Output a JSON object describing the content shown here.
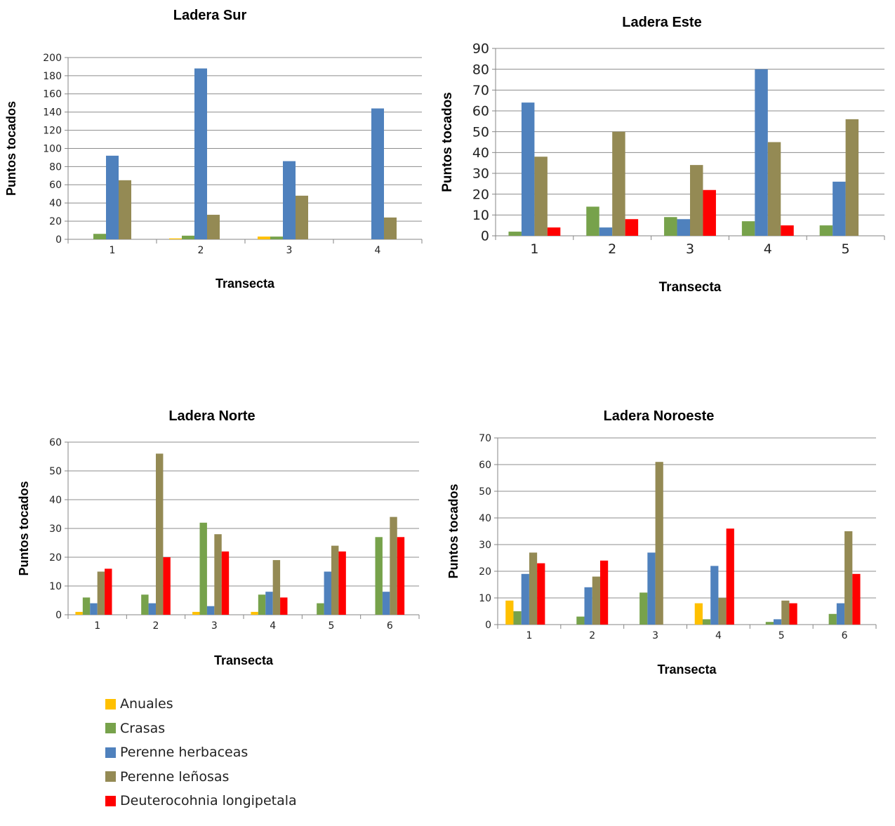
{
  "colors": {
    "Anuales": "#ffc000",
    "Crasas": "#77a24b",
    "Perenne herbaceas": "#4f81bd",
    "Perenne leñosas": "#948a54",
    "Deuterocohnia longipetala": "#ff0000"
  },
  "legend": {
    "items": [
      {
        "label": "Anuales",
        "color": "#ffc000"
      },
      {
        "label": "Crasas",
        "color": "#77a24b"
      },
      {
        "label": "Perenne herbaceas",
        "color": "#4f81bd"
      },
      {
        "label": "Perenne leñosas",
        "color": "#948a54"
      },
      {
        "label": "Deuterocohnia longipetala",
        "color": "#ff0000"
      }
    ]
  },
  "chart_data": [
    {
      "type": "bar",
      "title": "Ladera Sur",
      "xlabel": "Transecta",
      "ylabel": "Puntos tocados",
      "ylim": [
        0,
        200
      ],
      "ystep": 20,
      "categories": [
        "1",
        "2",
        "3",
        "4"
      ],
      "series": [
        {
          "name": "Anuales",
          "values": [
            0,
            1,
            3,
            0
          ]
        },
        {
          "name": "Crasas",
          "values": [
            6,
            4,
            3,
            0
          ]
        },
        {
          "name": "Perenne herbaceas",
          "values": [
            92,
            188,
            86,
            144
          ]
        },
        {
          "name": "Perenne leñosas",
          "values": [
            65,
            27,
            48,
            24
          ]
        }
      ],
      "grid": true,
      "legend": "none"
    },
    {
      "type": "bar",
      "title": "Ladera Este",
      "xlabel": "Transecta",
      "ylabel": "Puntos tocados",
      "ylim": [
        0,
        90
      ],
      "ystep": 10,
      "categories": [
        "1",
        "2",
        "3",
        "4",
        "5"
      ],
      "series": [
        {
          "name": "Crasas",
          "values": [
            2,
            14,
            9,
            7,
            5
          ]
        },
        {
          "name": "Perenne herbaceas",
          "values": [
            64,
            4,
            8,
            80,
            26
          ]
        },
        {
          "name": "Perenne leñosas",
          "values": [
            38,
            50,
            34,
            45,
            56
          ]
        },
        {
          "name": "Deuterocohnia longipetala",
          "values": [
            4,
            8,
            22,
            5,
            0
          ]
        }
      ],
      "grid": true,
      "legend": "none"
    },
    {
      "type": "bar",
      "title": "Ladera Norte",
      "xlabel": "Transecta",
      "ylabel": "Puntos tocados",
      "ylim": [
        0,
        60
      ],
      "ystep": 10,
      "categories": [
        "1",
        "2",
        "3",
        "4",
        "5",
        "6"
      ],
      "series": [
        {
          "name": "Anuales",
          "values": [
            1,
            0,
            1,
            1,
            0,
            0
          ]
        },
        {
          "name": "Crasas",
          "values": [
            6,
            7,
            32,
            7,
            4,
            27
          ]
        },
        {
          "name": "Perenne herbaceas",
          "values": [
            4,
            4,
            3,
            8,
            15,
            8
          ]
        },
        {
          "name": "Perenne leñosas",
          "values": [
            15,
            56,
            28,
            19,
            24,
            34
          ]
        },
        {
          "name": "Deuterocohnia longipetala",
          "values": [
            16,
            20,
            22,
            6,
            22,
            27
          ]
        }
      ],
      "grid": true,
      "legend": "bottom-left"
    },
    {
      "type": "bar",
      "title": "Ladera Noroeste",
      "xlabel": "Transecta",
      "ylabel": "Puntos tocados",
      "ylim": [
        0,
        70
      ],
      "ystep": 10,
      "categories": [
        "1",
        "2",
        "3",
        "4",
        "5",
        "6"
      ],
      "series": [
        {
          "name": "Anuales",
          "values": [
            9,
            0,
            0,
            8,
            0,
            0
          ]
        },
        {
          "name": "Crasas",
          "values": [
            5,
            3,
            12,
            2,
            1,
            4
          ]
        },
        {
          "name": "Perenne herbaceas",
          "values": [
            19,
            14,
            27,
            22,
            2,
            8
          ]
        },
        {
          "name": "Perenne leñosas",
          "values": [
            27,
            18,
            61,
            10,
            9,
            35
          ]
        },
        {
          "name": "Deuterocohnia longipetala",
          "values": [
            23,
            24,
            0,
            36,
            8,
            19
          ]
        }
      ],
      "grid": true,
      "legend": "none"
    }
  ]
}
